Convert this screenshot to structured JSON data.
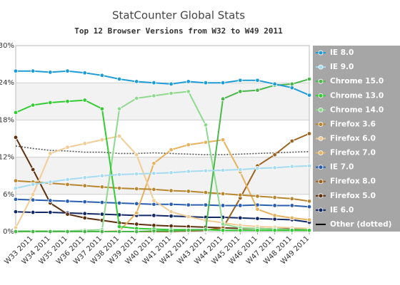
{
  "chart_data": {
    "type": "line",
    "title": "StatCounter Global Stats",
    "subtitle": "Top 12 Browser Versions from W32 to W49 2011",
    "categories": [
      null,
      "W33 2011",
      "W34 2011",
      "W35 2011",
      "W36 2011",
      "W37 2011",
      "W38 2011",
      "W39 2011",
      "W40 2011",
      "W41 2011",
      "W42 2011",
      "W43 2011",
      "W44 2011",
      "W45 2011",
      "W46 2011",
      "W47 2011",
      "W48 2011",
      "W49 2011"
    ],
    "ylim": [
      0,
      30
    ],
    "yticks": [
      {
        "value": 0,
        "label": "0%"
      },
      {
        "value": 6,
        "label": "6%"
      },
      {
        "value": 12,
        "label": "12%"
      },
      {
        "value": 18,
        "label": "18%"
      },
      {
        "value": 24,
        "label": "24%"
      },
      {
        "value": 30,
        "label": "30%"
      }
    ],
    "grid": true,
    "legend": "right",
    "series": [
      {
        "name": "IE 8.0",
        "color": "#1e9cd7",
        "values": [
          25.9,
          25.9,
          25.7,
          25.9,
          25.6,
          25.2,
          24.6,
          24.2,
          24.0,
          23.8,
          24.2,
          24.0,
          24.0,
          24.4,
          24.4,
          23.8,
          23.2,
          22.0
        ]
      },
      {
        "name": "IE 9.0",
        "color": "#a6dcf2",
        "values": [
          7.0,
          7.6,
          8.0,
          8.4,
          8.7,
          9.0,
          9.2,
          9.3,
          9.4,
          9.5,
          9.7,
          9.8,
          9.9,
          10.0,
          10.2,
          10.3,
          10.5,
          10.6
        ]
      },
      {
        "name": "Chrome 15.0",
        "color": "#4cb84c",
        "values": [
          0,
          0,
          0,
          0,
          0,
          0,
          0,
          0,
          0.1,
          0.1,
          0.2,
          0.3,
          21.4,
          22.6,
          22.8,
          23.6,
          23.8,
          24.6
        ]
      },
      {
        "name": "Chrome 13.0",
        "color": "#33cc33",
        "values": [
          19.2,
          20.4,
          20.8,
          21.0,
          21.2,
          19.8,
          0.8,
          0.5,
          0.4,
          0.3,
          0.3,
          0.3,
          0.2,
          0.2,
          0.2,
          0.2,
          0.2,
          0.2
        ]
      },
      {
        "name": "Chrome 14.0",
        "color": "#8fd98f",
        "values": [
          0.1,
          0.1,
          0.1,
          0.1,
          0.2,
          0.3,
          19.8,
          21.5,
          21.9,
          22.3,
          22.6,
          17.2,
          1.2,
          0.6,
          0.5,
          0.4,
          0.3,
          0.3
        ]
      },
      {
        "name": "Firefox 3.6",
        "color": "#b8862e",
        "values": [
          8.2,
          8.0,
          7.8,
          7.6,
          7.4,
          7.2,
          7.0,
          6.9,
          6.8,
          6.6,
          6.5,
          6.3,
          6.1,
          5.9,
          5.7,
          5.5,
          5.3,
          4.9
        ]
      },
      {
        "name": "Firefox 6.0",
        "color": "#f2cc96",
        "values": [
          0.6,
          6.0,
          12.6,
          13.6,
          14.2,
          14.8,
          15.4,
          12.4,
          5.0,
          3.2,
          2.4,
          1.8,
          1.4,
          1.0,
          0.8,
          0.7,
          0.6,
          0.5
        ]
      },
      {
        "name": "Firefox 7.0",
        "color": "#e6b25e",
        "values": [
          0,
          0,
          0,
          0,
          0,
          0,
          0.1,
          3.0,
          11.0,
          13.2,
          14.0,
          14.4,
          14.8,
          9.6,
          3.6,
          2.6,
          2.2,
          1.9
        ]
      },
      {
        "name": "IE 7.0",
        "color": "#2a5fb0",
        "values": [
          5.2,
          5.1,
          5.0,
          4.9,
          4.8,
          4.7,
          4.6,
          4.5,
          4.4,
          4.4,
          4.3,
          4.3,
          4.2,
          4.2,
          4.3,
          4.2,
          4.2,
          4.0
        ]
      },
      {
        "name": "Firefox 8.0",
        "color": "#9c6422",
        "values": [
          0,
          0,
          0,
          0,
          0,
          0,
          0,
          0,
          0,
          0,
          0.1,
          0.2,
          0.6,
          5.4,
          10.6,
          12.4,
          14.6,
          15.8
        ]
      },
      {
        "name": "Firefox 5.0",
        "color": "#5e3110",
        "values": [
          15.2,
          10.0,
          4.6,
          2.8,
          2.2,
          1.8,
          1.4,
          1.2,
          1.0,
          0.9,
          0.8,
          0.7,
          0.6,
          0.5,
          0.5,
          0.4,
          0.4,
          0.4
        ]
      },
      {
        "name": "IE 6.0",
        "color": "#142a66",
        "values": [
          3.2,
          3.1,
          3.1,
          3.0,
          2.9,
          2.8,
          2.7,
          2.6,
          2.6,
          2.5,
          2.4,
          2.3,
          2.3,
          2.2,
          2.1,
          2.0,
          1.9,
          1.5
        ]
      },
      {
        "name": "Other (dotted)",
        "color": "#555555",
        "dashed": true,
        "values": [
          13.8,
          13.4,
          13.1,
          13.0,
          12.8,
          12.8,
          12.6,
          12.6,
          12.7,
          12.6,
          12.5,
          12.4,
          12.4,
          12.5,
          12.6,
          12.7,
          12.8,
          12.9
        ]
      }
    ]
  }
}
